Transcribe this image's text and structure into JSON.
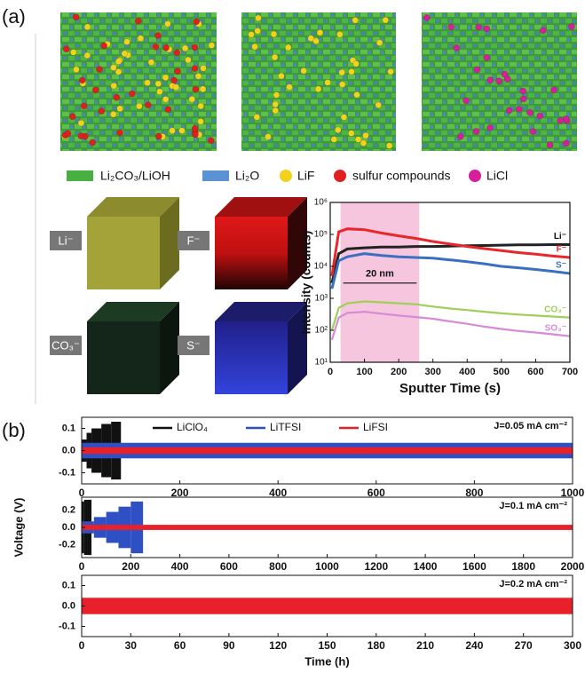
{
  "panel_labels": [
    "(a)",
    "(b)"
  ],
  "legend": [
    "Li₂CO₃/LiOH",
    "Li₂O",
    "LiF",
    "sulfur compounds",
    "LiCl"
  ],
  "cube_labels": [
    "Li⁻",
    "F⁻",
    "CO₃⁻",
    "S⁻"
  ],
  "chart_data": [
    {
      "type": "line",
      "log_y": true,
      "x_label": "Sputter Time (s)",
      "y_label": "Intensity (counts)",
      "x": [
        5,
        25,
        50,
        100,
        150,
        200,
        250,
        300,
        350,
        400,
        450,
        500,
        550,
        600,
        650,
        700
      ],
      "series": [
        {
          "name": "Li⁻",
          "color": "#222222",
          "values": [
            3000,
            25000,
            35000,
            38000,
            40000,
            40000,
            42000,
            42000,
            43000,
            44000,
            45000,
            46000,
            47000,
            47000,
            48000,
            48000
          ]
        },
        {
          "name": "F⁻",
          "color": "#e8262b",
          "values": [
            5000,
            120000,
            150000,
            140000,
            110000,
            90000,
            75000,
            60000,
            50000,
            42000,
            36000,
            31000,
            27000,
            24000,
            21000,
            19000
          ]
        },
        {
          "name": "S⁻",
          "color": "#3b6fc0",
          "values": [
            2000,
            15000,
            20000,
            25000,
            22000,
            20000,
            19000,
            18000,
            16000,
            14000,
            12000,
            10000,
            9000,
            8000,
            7000,
            6000
          ]
        },
        {
          "name": "CO₃⁻",
          "color": "#9fcf57",
          "values": [
            100,
            500,
            700,
            800,
            750,
            700,
            650,
            550,
            480,
            430,
            380,
            340,
            310,
            290,
            270,
            250
          ]
        },
        {
          "name": "SO₃⁻",
          "color": "#d78ad8",
          "values": [
            50,
            250,
            350,
            380,
            330,
            290,
            260,
            230,
            190,
            160,
            130,
            110,
            95,
            85,
            75,
            65
          ]
        }
      ],
      "highlight": {
        "x": [
          30,
          260
        ],
        "label": "20 nm",
        "color": "#f6c6de"
      },
      "xlim": [
        0,
        700
      ],
      "xticks": [
        0,
        100,
        200,
        300,
        400,
        500,
        600,
        700
      ],
      "ylim": [
        10,
        1000000
      ],
      "yticks": [
        {
          "value": 10,
          "label": "10¹"
        },
        {
          "value": 100,
          "label": "10²"
        },
        {
          "value": 1000,
          "label": "10³"
        },
        {
          "value": 10000,
          "label": "10⁴"
        },
        {
          "value": 100000,
          "label": "10⁵"
        },
        {
          "value": 1000000,
          "label": "10⁶"
        }
      ]
    },
    {
      "type": "envelope",
      "annotation": "J=0.05 mA cm⁻²",
      "series": [
        {
          "name": "LiClO₄",
          "color": "#111111",
          "bins": [
            0,
            10,
            20,
            40,
            60,
            80
          ],
          "values": [
            0.05,
            0.08,
            0.1,
            0.12,
            0.13
          ]
        },
        {
          "name": "LiTFSI",
          "color": "#2f4fc4",
          "bins": [
            0,
            1000
          ],
          "values": [
            0.035
          ]
        },
        {
          "name": "LiFSI",
          "color": "#e8202a",
          "bins": [
            0,
            1000
          ],
          "values": [
            0.015
          ]
        }
      ],
      "xlim": [
        0,
        1000
      ],
      "xticks": [
        0,
        200,
        400,
        600,
        800,
        1000
      ],
      "ylim": [
        -0.15,
        0.15
      ],
      "yticks": [
        0.1,
        {
          "value": 0,
          "label": "0.0"
        },
        -0.1
      ]
    },
    {
      "type": "envelope",
      "annotation": "J=0.1 mA cm⁻²",
      "y_label": "Voltage (V)",
      "series": [
        {
          "color": "#111111",
          "bins": [
            0,
            10,
            40
          ],
          "values": [
            0.3,
            0.32
          ]
        },
        {
          "color": "#2f4fc4",
          "bins": [
            0,
            50,
            100,
            150,
            200,
            250
          ],
          "values": [
            0.07,
            0.12,
            0.18,
            0.24,
            0.3
          ]
        },
        {
          "color": "#e8202a",
          "bins": [
            0,
            2000
          ],
          "values": [
            0.03
          ]
        }
      ],
      "xlim": [
        0,
        2000
      ],
      "xticks": [
        0,
        200,
        400,
        600,
        800,
        1000,
        1200,
        1400,
        1600,
        1800,
        2000
      ],
      "ylim": [
        -0.35,
        0.35
      ],
      "yticks": [
        0.2,
        {
          "value": 0,
          "label": "0.0"
        },
        -0.2
      ]
    },
    {
      "type": "envelope",
      "annotation": "J=0.2 mA cm⁻²",
      "x_label": "Time (h)",
      "series": [
        {
          "color": "#e8202a",
          "bins": [
            0,
            300
          ],
          "values": [
            0.04
          ]
        }
      ],
      "xlim": [
        0,
        300
      ],
      "xticks": [
        0,
        30,
        60,
        90,
        120,
        150,
        180,
        210,
        240,
        270,
        300
      ],
      "ylim": [
        -0.15,
        0.15
      ],
      "yticks": [
        0.1,
        {
          "value": 0,
          "label": "0.0"
        },
        -0.1
      ]
    }
  ]
}
